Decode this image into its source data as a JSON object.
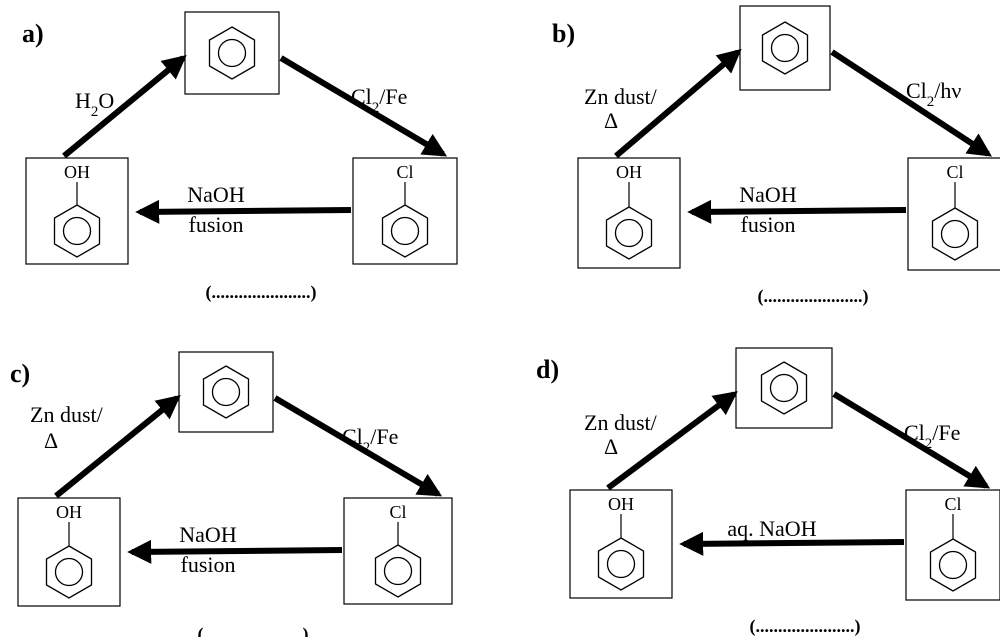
{
  "panels": [
    {
      "label": "a)",
      "top_reagent": "H",
      "top_reagent_sub": "2",
      "top_reagent_end": "O",
      "top_reagent_line2": "",
      "right_reagent_pre": "Cl",
      "right_reagent_sub": "2",
      "right_reagent_post": "/Fe",
      "bottom_reagent_line1": "NaOH",
      "bottom_reagent_line2": "fusion",
      "left_substituent": "OH",
      "right_substituent": "Cl",
      "answer_blank": "(......................)"
    },
    {
      "label": "b)",
      "top_reagent": "Zn dust/",
      "top_reagent_sub": "",
      "top_reagent_end": "",
      "top_reagent_line2": "Δ",
      "right_reagent_pre": "Cl",
      "right_reagent_sub": "2",
      "right_reagent_post": "/hν",
      "bottom_reagent_line1": "NaOH",
      "bottom_reagent_line2": "fusion",
      "left_substituent": "OH",
      "right_substituent": "Cl",
      "answer_blank": "(......................)"
    },
    {
      "label": "c)",
      "top_reagent": "Zn dust/",
      "top_reagent_sub": "",
      "top_reagent_end": "",
      "top_reagent_line2": "Δ",
      "right_reagent_pre": "Cl",
      "right_reagent_sub": "2",
      "right_reagent_post": "/Fe",
      "bottom_reagent_line1": "NaOH",
      "bottom_reagent_line2": "fusion",
      "left_substituent": "OH",
      "right_substituent": "Cl",
      "answer_blank": "(......................)"
    },
    {
      "label": "d)",
      "top_reagent": "Zn dust/",
      "top_reagent_sub": "",
      "top_reagent_end": "",
      "top_reagent_line2": "Δ",
      "right_reagent_pre": "Cl",
      "right_reagent_sub": "2",
      "right_reagent_post": "/Fe",
      "bottom_reagent_line1": "aq. NaOH",
      "bottom_reagent_line2": "",
      "left_substituent": "OH",
      "right_substituent": "Cl",
      "answer_blank": "(......................)"
    }
  ]
}
